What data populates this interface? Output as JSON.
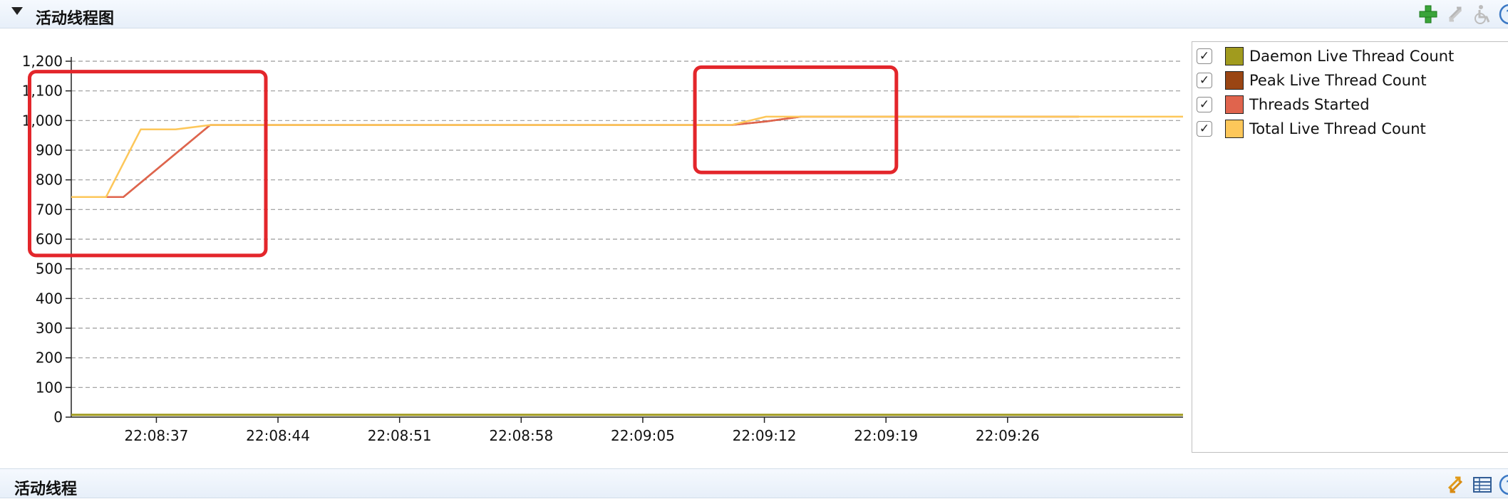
{
  "top_section": {
    "title": "活动线程图"
  },
  "bottom_section": {
    "title": "活动线程"
  },
  "toolbar_top": {
    "icons": [
      "add-icon",
      "refresh-icon",
      "accessibility-icon",
      "help-icon"
    ]
  },
  "toolbar_bottom": {
    "icons": [
      "refresh-icon",
      "table-icon",
      "help-icon"
    ]
  },
  "legend": {
    "items": [
      {
        "label": "Daemon Live Thread Count",
        "color": "#a19b1e",
        "checked": true
      },
      {
        "label": "Peak Live Thread Count",
        "color": "#9a4513",
        "checked": true
      },
      {
        "label": "Threads Started",
        "color": "#e0644d",
        "checked": true
      },
      {
        "label": "Total Live Thread Count",
        "color": "#fdc75a",
        "checked": true
      }
    ]
  },
  "chart_data": {
    "type": "line",
    "ylim": [
      0,
      1200
    ],
    "yticks": [
      0,
      100,
      200,
      300,
      400,
      500,
      600,
      700,
      800,
      900,
      1000,
      1100,
      1200
    ],
    "ytick_labels": [
      "0",
      "100",
      "200",
      "300",
      "400",
      "500",
      "600",
      "700",
      "800",
      "900",
      "1,000",
      "1,100",
      "1,200"
    ],
    "xlim": [
      0,
      64
    ],
    "xticks": [
      4.9,
      11.9,
      18.9,
      25.9,
      32.9,
      39.9,
      46.9,
      53.9
    ],
    "xtick_labels": [
      "22:08:37",
      "22:08:44",
      "22:08:51",
      "22:08:58",
      "22:09:05",
      "22:09:12",
      "22:09:19",
      "22:09:26"
    ],
    "grid": true,
    "series": [
      {
        "name": "Daemon Live Thread Count",
        "color": "#a19b1e",
        "points": [
          [
            0,
            8
          ],
          [
            64,
            8
          ]
        ]
      },
      {
        "name": "Peak Live Thread Count",
        "color": "#9a4513",
        "points": [
          [
            0,
            742
          ],
          [
            3,
            742
          ],
          [
            8,
            985
          ],
          [
            38,
            985
          ],
          [
            40,
            997
          ],
          [
            42,
            1013
          ],
          [
            58,
            1013
          ]
        ]
      },
      {
        "name": "Threads Started",
        "color": "#e0644d",
        "points": [
          [
            0,
            742
          ],
          [
            3,
            742
          ],
          [
            8,
            985
          ],
          [
            38,
            985
          ],
          [
            40,
            997
          ],
          [
            42,
            1013
          ],
          [
            58,
            1013
          ]
        ]
      },
      {
        "name": "Total Live Thread Count",
        "color": "#fdc75a",
        "points": [
          [
            0,
            742
          ],
          [
            2,
            742
          ],
          [
            4,
            970
          ],
          [
            6,
            970
          ],
          [
            8,
            985
          ],
          [
            38,
            985
          ],
          [
            40,
            1013
          ],
          [
            64,
            1013
          ]
        ]
      }
    ],
    "annotations": [
      {
        "type": "highlight-box",
        "color": "#e3262b",
        "x": [
          -2.4,
          11.2
        ],
        "y": [
          545,
          1165
        ]
      },
      {
        "type": "highlight-box",
        "color": "#e3262b",
        "x": [
          35.9,
          47.5
        ],
        "y": [
          825,
          1180
        ]
      }
    ]
  }
}
